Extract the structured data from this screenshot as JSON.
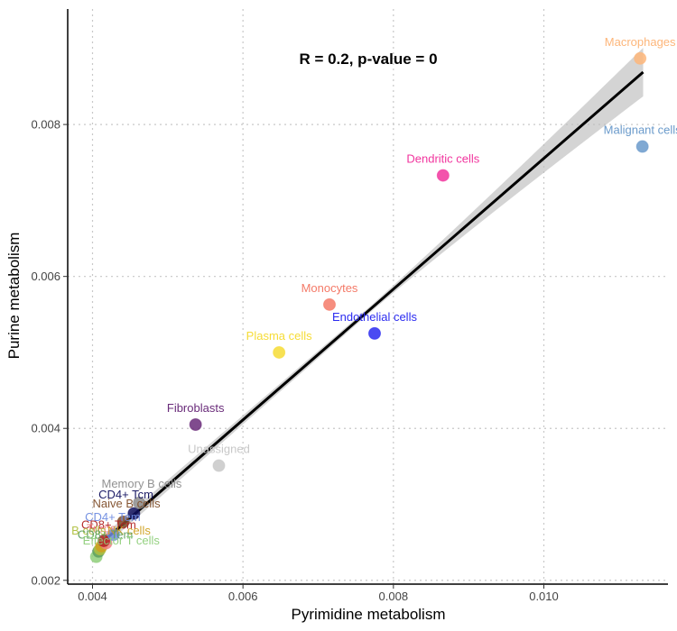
{
  "chart_data": {
    "type": "scatter",
    "title": "",
    "xlabel": "Pyrimidine metabolism",
    "ylabel": "Purine metabolism",
    "annotation": "R = 0.2, p-value = 0",
    "xlim": [
      0.00367,
      0.01165
    ],
    "ylim": [
      0.00195,
      0.00952
    ],
    "xticks": [
      0.004,
      0.006,
      0.008,
      0.01
    ],
    "yticks": [
      0.002,
      0.004,
      0.006,
      0.008
    ],
    "xtick_labels": [
      "0.004",
      "0.006",
      "0.008",
      "0.010"
    ],
    "ytick_labels": [
      "0.002",
      "0.004",
      "0.006",
      "0.008"
    ],
    "grid": true,
    "legend": "none",
    "regression": {
      "x_start": 0.00408,
      "y_start": 0.00246,
      "x_end": 0.01132,
      "y_end": 0.00869,
      "band_half_width_start": 8e-05,
      "band_half_width_mid": 4e-05,
      "band_half_width_end": 0.00032,
      "line_color": "#000000",
      "band_color": "#bdbdbd"
    },
    "points": [
      {
        "label": "Macrophages",
        "x": 0.01128,
        "y": 0.00887,
        "color": "#FDB67A"
      },
      {
        "label": "Malignant cells",
        "x": 0.01131,
        "y": 0.00771,
        "color": "#6A9ACB"
      },
      {
        "label": "Dendritic cells",
        "x": 0.00866,
        "y": 0.00733,
        "color": "#F1359E"
      },
      {
        "label": "Monocytes",
        "x": 0.00715,
        "y": 0.00563,
        "color": "#F47A68"
      },
      {
        "label": "Endothelial cells",
        "x": 0.00775,
        "y": 0.00525,
        "color": "#2B2BF0"
      },
      {
        "label": "Plasma cells",
        "x": 0.00648,
        "y": 0.005,
        "color": "#F6DC35"
      },
      {
        "label": "Fibroblasts",
        "x": 0.00537,
        "y": 0.00405,
        "color": "#6A2C7A"
      },
      {
        "label": "Unassigned",
        "x": 0.00568,
        "y": 0.00351,
        "color": "#C8C8C8"
      },
      {
        "label": "Memory B cells",
        "x": 0.00462,
        "y": 0.00302,
        "color": "#8C8C8C"
      },
      {
        "label": "CD4+ Tcm",
        "x": 0.00455,
        "y": 0.00288,
        "color": "#10105E"
      },
      {
        "label": "Naive B cells",
        "x": 0.00441,
        "y": 0.00277,
        "color": "#7F4E2A"
      },
      {
        "label": "CD4+ Tem",
        "x": 0.00428,
        "y": 0.0026,
        "color": "#6F8CE0"
      },
      {
        "label": "CD8+ Tcm",
        "x": 0.00415,
        "y": 0.00252,
        "color": "#B22222"
      },
      {
        "label": "Tregs",
        "x": 0.00418,
        "y": 0.00249,
        "color": "#F08080"
      },
      {
        "label": "NK cells",
        "x": 0.00412,
        "y": 0.00245,
        "color": "#D0A020"
      },
      {
        "label": "B cells",
        "x": 0.0041,
        "y": 0.00241,
        "color": "#B0C040"
      },
      {
        "label": "CD8+ Tem",
        "x": 0.00408,
        "y": 0.00238,
        "color": "#5FA05F"
      },
      {
        "label": "Effector T cells",
        "x": 0.00405,
        "y": 0.00231,
        "color": "#8FCF7A"
      }
    ],
    "dense_labels": [
      {
        "text": "Memory B cells",
        "x": 0.00412,
        "y": 0.00322,
        "color": "#8C8C8C"
      },
      {
        "text": "CD4+ Tcm",
        "x": 0.00408,
        "y": 0.00308,
        "color": "#10105E"
      },
      {
        "text": "Naive B cells",
        "x": 0.004,
        "y": 0.00296,
        "color": "#7F4E2A"
      },
      {
        "text": "CD4+ Tem",
        "x": 0.0039,
        "y": 0.00278,
        "color": "#6F8CE0"
      },
      {
        "text": "CD8+ Tcm",
        "x": 0.00385,
        "y": 0.00268,
        "color": "#B22222"
      },
      {
        "text": "Tregs",
        "x": 0.00392,
        "y": 0.00263,
        "color": "#F08080"
      },
      {
        "text": "NK cells",
        "x": 0.0042,
        "y": 0.0026,
        "color": "#D0A020"
      },
      {
        "text": "B cells",
        "x": 0.00372,
        "y": 0.0026,
        "color": "#B0C040"
      },
      {
        "text": "CD8+ Tem",
        "x": 0.0038,
        "y": 0.00255,
        "color": "#5FA05F"
      },
      {
        "text": "Effector T cells",
        "x": 0.00387,
        "y": 0.00247,
        "color": "#8FCF7A"
      }
    ]
  }
}
